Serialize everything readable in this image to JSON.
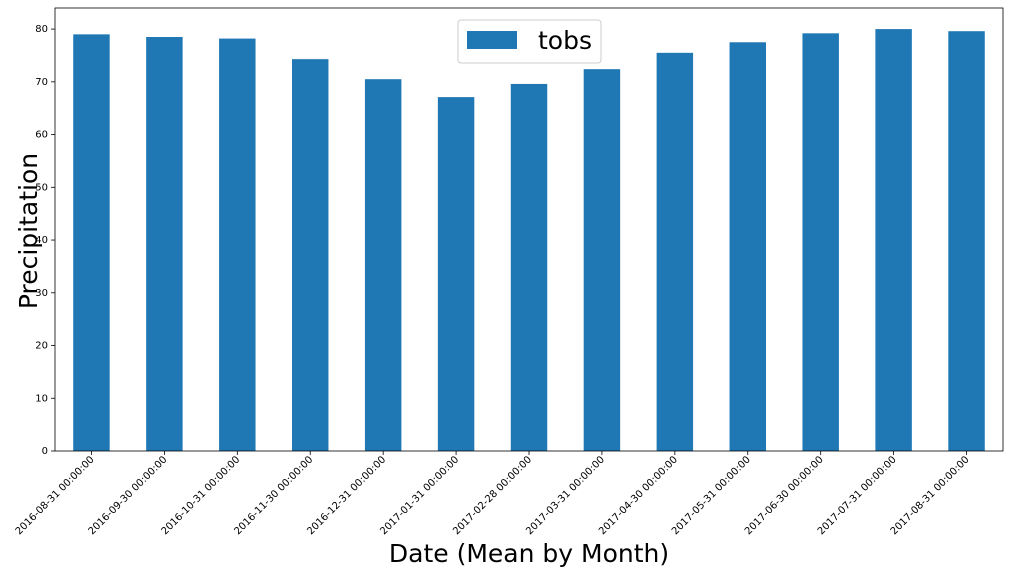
{
  "chart_data": {
    "type": "bar",
    "title": "",
    "xlabel": "Date (Mean by Month)",
    "ylabel": "Precipitation",
    "categories": [
      "2016-08-31 00:00:00",
      "2016-09-30 00:00:00",
      "2016-10-31 00:00:00",
      "2016-11-30 00:00:00",
      "2016-12-31 00:00:00",
      "2017-01-31 00:00:00",
      "2017-02-28 00:00:00",
      "2017-03-31 00:00:00",
      "2017-04-30 00:00:00",
      "2017-05-31 00:00:00",
      "2017-06-30 00:00:00",
      "2017-07-31 00:00:00",
      "2017-08-31 00:00:00"
    ],
    "series": [
      {
        "name": "tobs",
        "color": "#1f77b4",
        "values": [
          79.0,
          78.5,
          78.2,
          74.3,
          70.5,
          67.1,
          69.6,
          72.4,
          75.5,
          77.5,
          79.2,
          80.0,
          79.6
        ]
      }
    ],
    "ylim": [
      0,
      84
    ],
    "yticks": [
      0,
      10,
      20,
      30,
      40,
      50,
      60,
      70,
      80
    ],
    "legend_position": "top-center",
    "grid": false
  }
}
